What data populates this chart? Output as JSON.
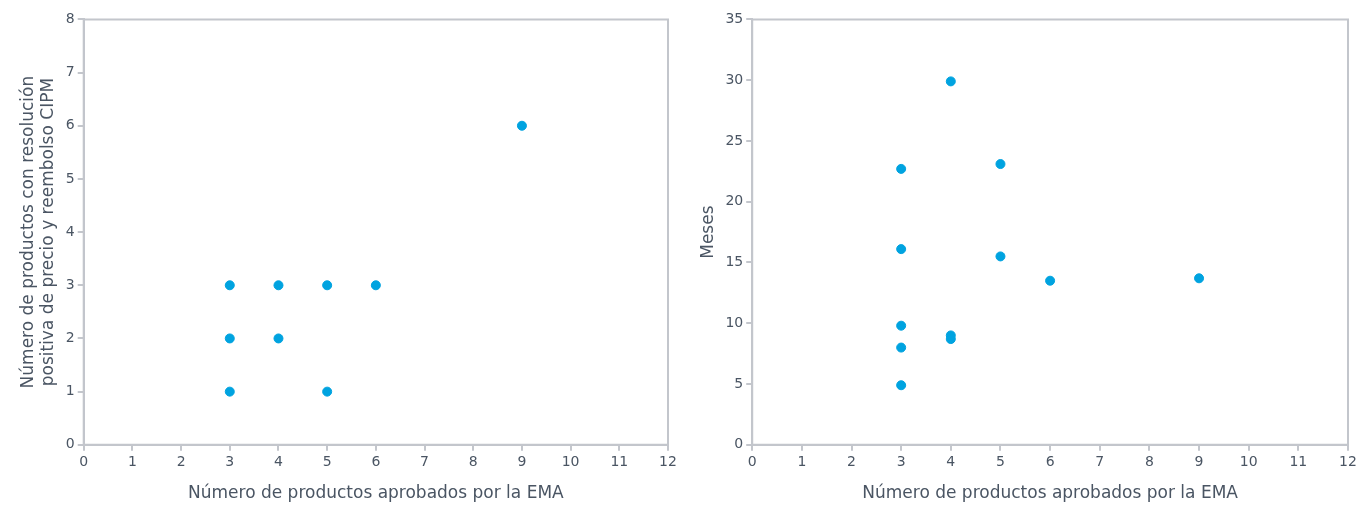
{
  "chart_data": [
    {
      "type": "scatter",
      "xlabel": "Número de productos aprobados por la EMA",
      "ylabel": "Número de productos con resolución\npositiva de precio y reembolso CIPM",
      "xlim": [
        0,
        12
      ],
      "xticks": [
        0,
        1,
        2,
        3,
        4,
        5,
        6,
        7,
        8,
        9,
        10,
        11,
        12
      ],
      "ylim": [
        0,
        8
      ],
      "yticks": [
        0,
        1,
        2,
        3,
        4,
        5,
        6,
        7,
        8
      ],
      "grid": false,
      "marker": "circle",
      "color": "#00a3e0",
      "x": [
        3,
        3,
        3,
        4,
        4,
        5,
        5,
        6,
        9
      ],
      "values": [
        1,
        2,
        3,
        2,
        3,
        1,
        3,
        3,
        6
      ]
    },
    {
      "type": "scatter",
      "xlabel": "Número de productos aprobados por la EMA",
      "ylabel": "Meses",
      "xlim": [
        0,
        12
      ],
      "xticks": [
        0,
        1,
        2,
        3,
        4,
        5,
        6,
        7,
        8,
        9,
        10,
        11,
        12
      ],
      "ylim": [
        0,
        35
      ],
      "yticks": [
        0,
        5,
        10,
        15,
        20,
        25,
        30,
        35
      ],
      "grid": false,
      "marker": "circle",
      "color": "#00a3e0",
      "x": [
        3,
        3,
        3,
        3,
        3,
        4,
        4,
        4,
        5,
        5,
        6,
        9
      ],
      "values": [
        22.7,
        16.1,
        9.8,
        8.0,
        4.9,
        29.9,
        9.0,
        8.7,
        23.1,
        15.5,
        13.5,
        13.7
      ]
    }
  ]
}
